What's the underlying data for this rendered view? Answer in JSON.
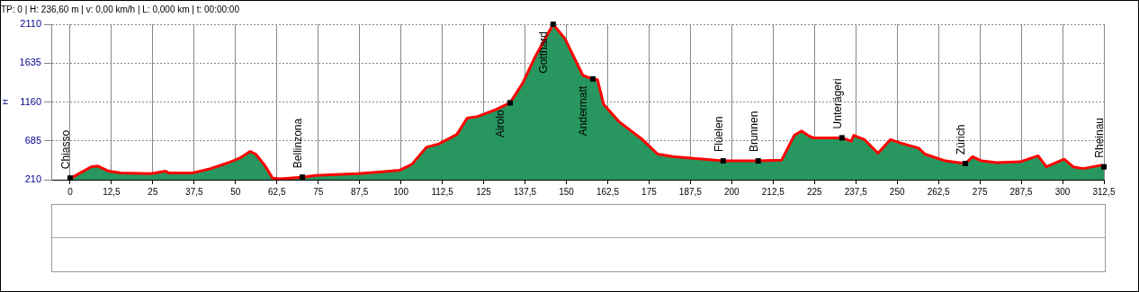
{
  "chart_data": {
    "type": "area",
    "title": "TP: 0 | H: 236,60 m | v: 0,00 km/h | L: 0,000 km | t: 00:00:00",
    "ylabel": "H",
    "x": [
      0,
      0.8,
      6.3,
      8.4,
      11.7,
      15.3,
      24.4,
      28.9,
      29.8,
      37,
      42.5,
      47.9,
      51.6,
      54.4,
      56.1,
      58.8,
      61.2,
      63.4,
      70.2,
      74.2,
      87,
      93.3,
      99.5,
      103.3,
      107.7,
      111.5,
      116.9,
      120,
      123.2,
      128.6,
      133,
      136.8,
      140.3,
      146,
      149.6,
      155,
      158,
      159.4,
      161.3,
      165.9,
      173,
      177.6,
      182.2,
      197.4,
      208,
      215.1,
      218.9,
      221.1,
      223,
      224.6,
      233.3,
      236.1,
      236.9,
      240.1,
      244.2,
      248,
      251,
      256.5,
      258.4,
      264.6,
      270.6,
      272.8,
      275.5,
      280.1,
      287.2,
      292.6,
      295.1,
      299.2,
      300.5,
      303.2,
      306.2,
      311.7,
      312.5
    ],
    "series": [
      {
        "color": "#28965f",
        "values": [
          230,
          241,
          367,
          377,
          314,
          293,
          283,
          314,
          293,
          293,
          346,
          419,
          481,
          555,
          523,
          387,
          230,
          220,
          241,
          262,
          283,
          304,
          325,
          398,
          607,
          648,
          763,
          962,
          983,
          1066,
          1150,
          1390,
          1692,
          2110,
          1933,
          1484,
          1442,
          1432,
          1129,
          920,
          701,
          523,
          492,
          440,
          440,
          450,
          753,
          805,
          753,
          722,
          722,
          680,
          753,
          701,
          534,
          701,
          659,
          596,
          523,
          440,
          408,
          492,
          440,
          419,
          429,
          502,
          367,
          440,
          461,
          367,
          346,
          387,
          367
        ]
      }
    ],
    "xlim": [
      -5.7,
      312.5
    ],
    "xticks": [
      {
        "value": 0,
        "label": "0"
      },
      {
        "value": 12.5,
        "label": "12,5"
      },
      {
        "value": 25,
        "label": "25"
      },
      {
        "value": 37.5,
        "label": "37,5"
      },
      {
        "value": 50,
        "label": "50"
      },
      {
        "value": 62.5,
        "label": "62,5"
      },
      {
        "value": 75,
        "label": "75"
      },
      {
        "value": 87.5,
        "label": "87,5"
      },
      {
        "value": 100,
        "label": "100"
      },
      {
        "value": 112.5,
        "label": "112,5"
      },
      {
        "value": 125,
        "label": "125"
      },
      {
        "value": 137.5,
        "label": "137,5"
      },
      {
        "value": 150,
        "label": "150"
      },
      {
        "value": 162.5,
        "label": "162,5"
      },
      {
        "value": 175,
        "label": "175"
      },
      {
        "value": 187.5,
        "label": "187,5"
      },
      {
        "value": 200,
        "label": "200"
      },
      {
        "value": 212.5,
        "label": "212,5"
      },
      {
        "value": 225,
        "label": "225"
      },
      {
        "value": 237.5,
        "label": "237,5"
      },
      {
        "value": 250,
        "label": "250"
      },
      {
        "value": 262.5,
        "label": "262,5"
      },
      {
        "value": 275,
        "label": "275"
      },
      {
        "value": 287.5,
        "label": "287,5"
      },
      {
        "value": 300,
        "label": "300"
      },
      {
        "value": 312.5,
        "label": "312,5"
      }
    ],
    "ylim": [
      210,
      2110
    ],
    "yticks": [
      210,
      685,
      1160,
      1635,
      2110
    ],
    "grid": true,
    "legend": false,
    "marker": "none",
    "line_style": "solid",
    "annotations": [
      {
        "text": "Chiasso",
        "x": 0,
        "y": 230
      },
      {
        "text": "Bellinzona",
        "x": 70.2,
        "y": 241
      },
      {
        "text": "Airolo",
        "x": 133,
        "y": 1150
      },
      {
        "text": "Gotthard",
        "x": 146,
        "y": 2110
      },
      {
        "text": "Andermatt",
        "x": 158,
        "y": 1442
      },
      {
        "text": "Flüelen",
        "x": 197.4,
        "y": 440
      },
      {
        "text": "Brunnen",
        "x": 208,
        "y": 440
      },
      {
        "text": "Unterägeri",
        "x": 233.3,
        "y": 722
      },
      {
        "text": "Zürich",
        "x": 270.6,
        "y": 408
      },
      {
        "text": "Rheinau",
        "x": 312.5,
        "y": 367
      }
    ]
  }
}
